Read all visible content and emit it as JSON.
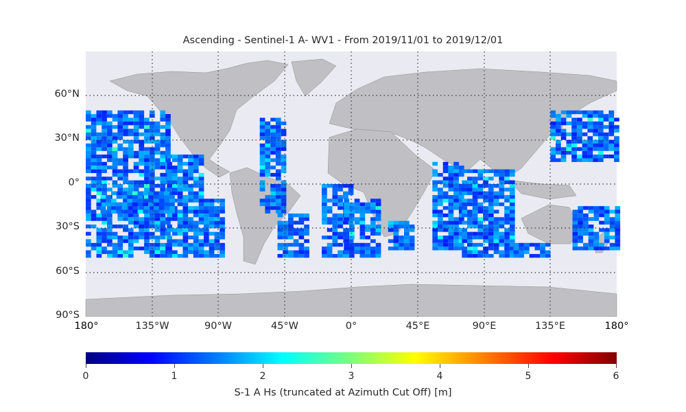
{
  "title": "Ascending - Sentinel-1 A- WV1 - From 2019/11/01 to 2019/12/01",
  "lat_labels": [
    "60°N",
    "30°N",
    "0°",
    "30°S",
    "60°S",
    "90°S"
  ],
  "lon_labels": [
    "180°",
    "135°W",
    "90°W",
    "45°W",
    "0°",
    "45°E",
    "90°E",
    "135°E",
    "180°"
  ],
  "colorbar": {
    "label": "S-1 A Hs (truncated at Azimuth Cut Off) [m]",
    "ticks": [
      "0",
      "1",
      "2",
      "3",
      "4",
      "5",
      "6"
    ],
    "range": [
      0,
      6
    ]
  },
  "colors": {
    "ocean": "#eaeaf2",
    "land": "#c0c0c4",
    "grid": "#333333"
  },
  "map": {
    "projection": "PlateCarree",
    "lon_range": [
      -180,
      180
    ],
    "lat_range": [
      -90,
      90
    ],
    "data_lat_range": [
      -50,
      50
    ]
  }
}
